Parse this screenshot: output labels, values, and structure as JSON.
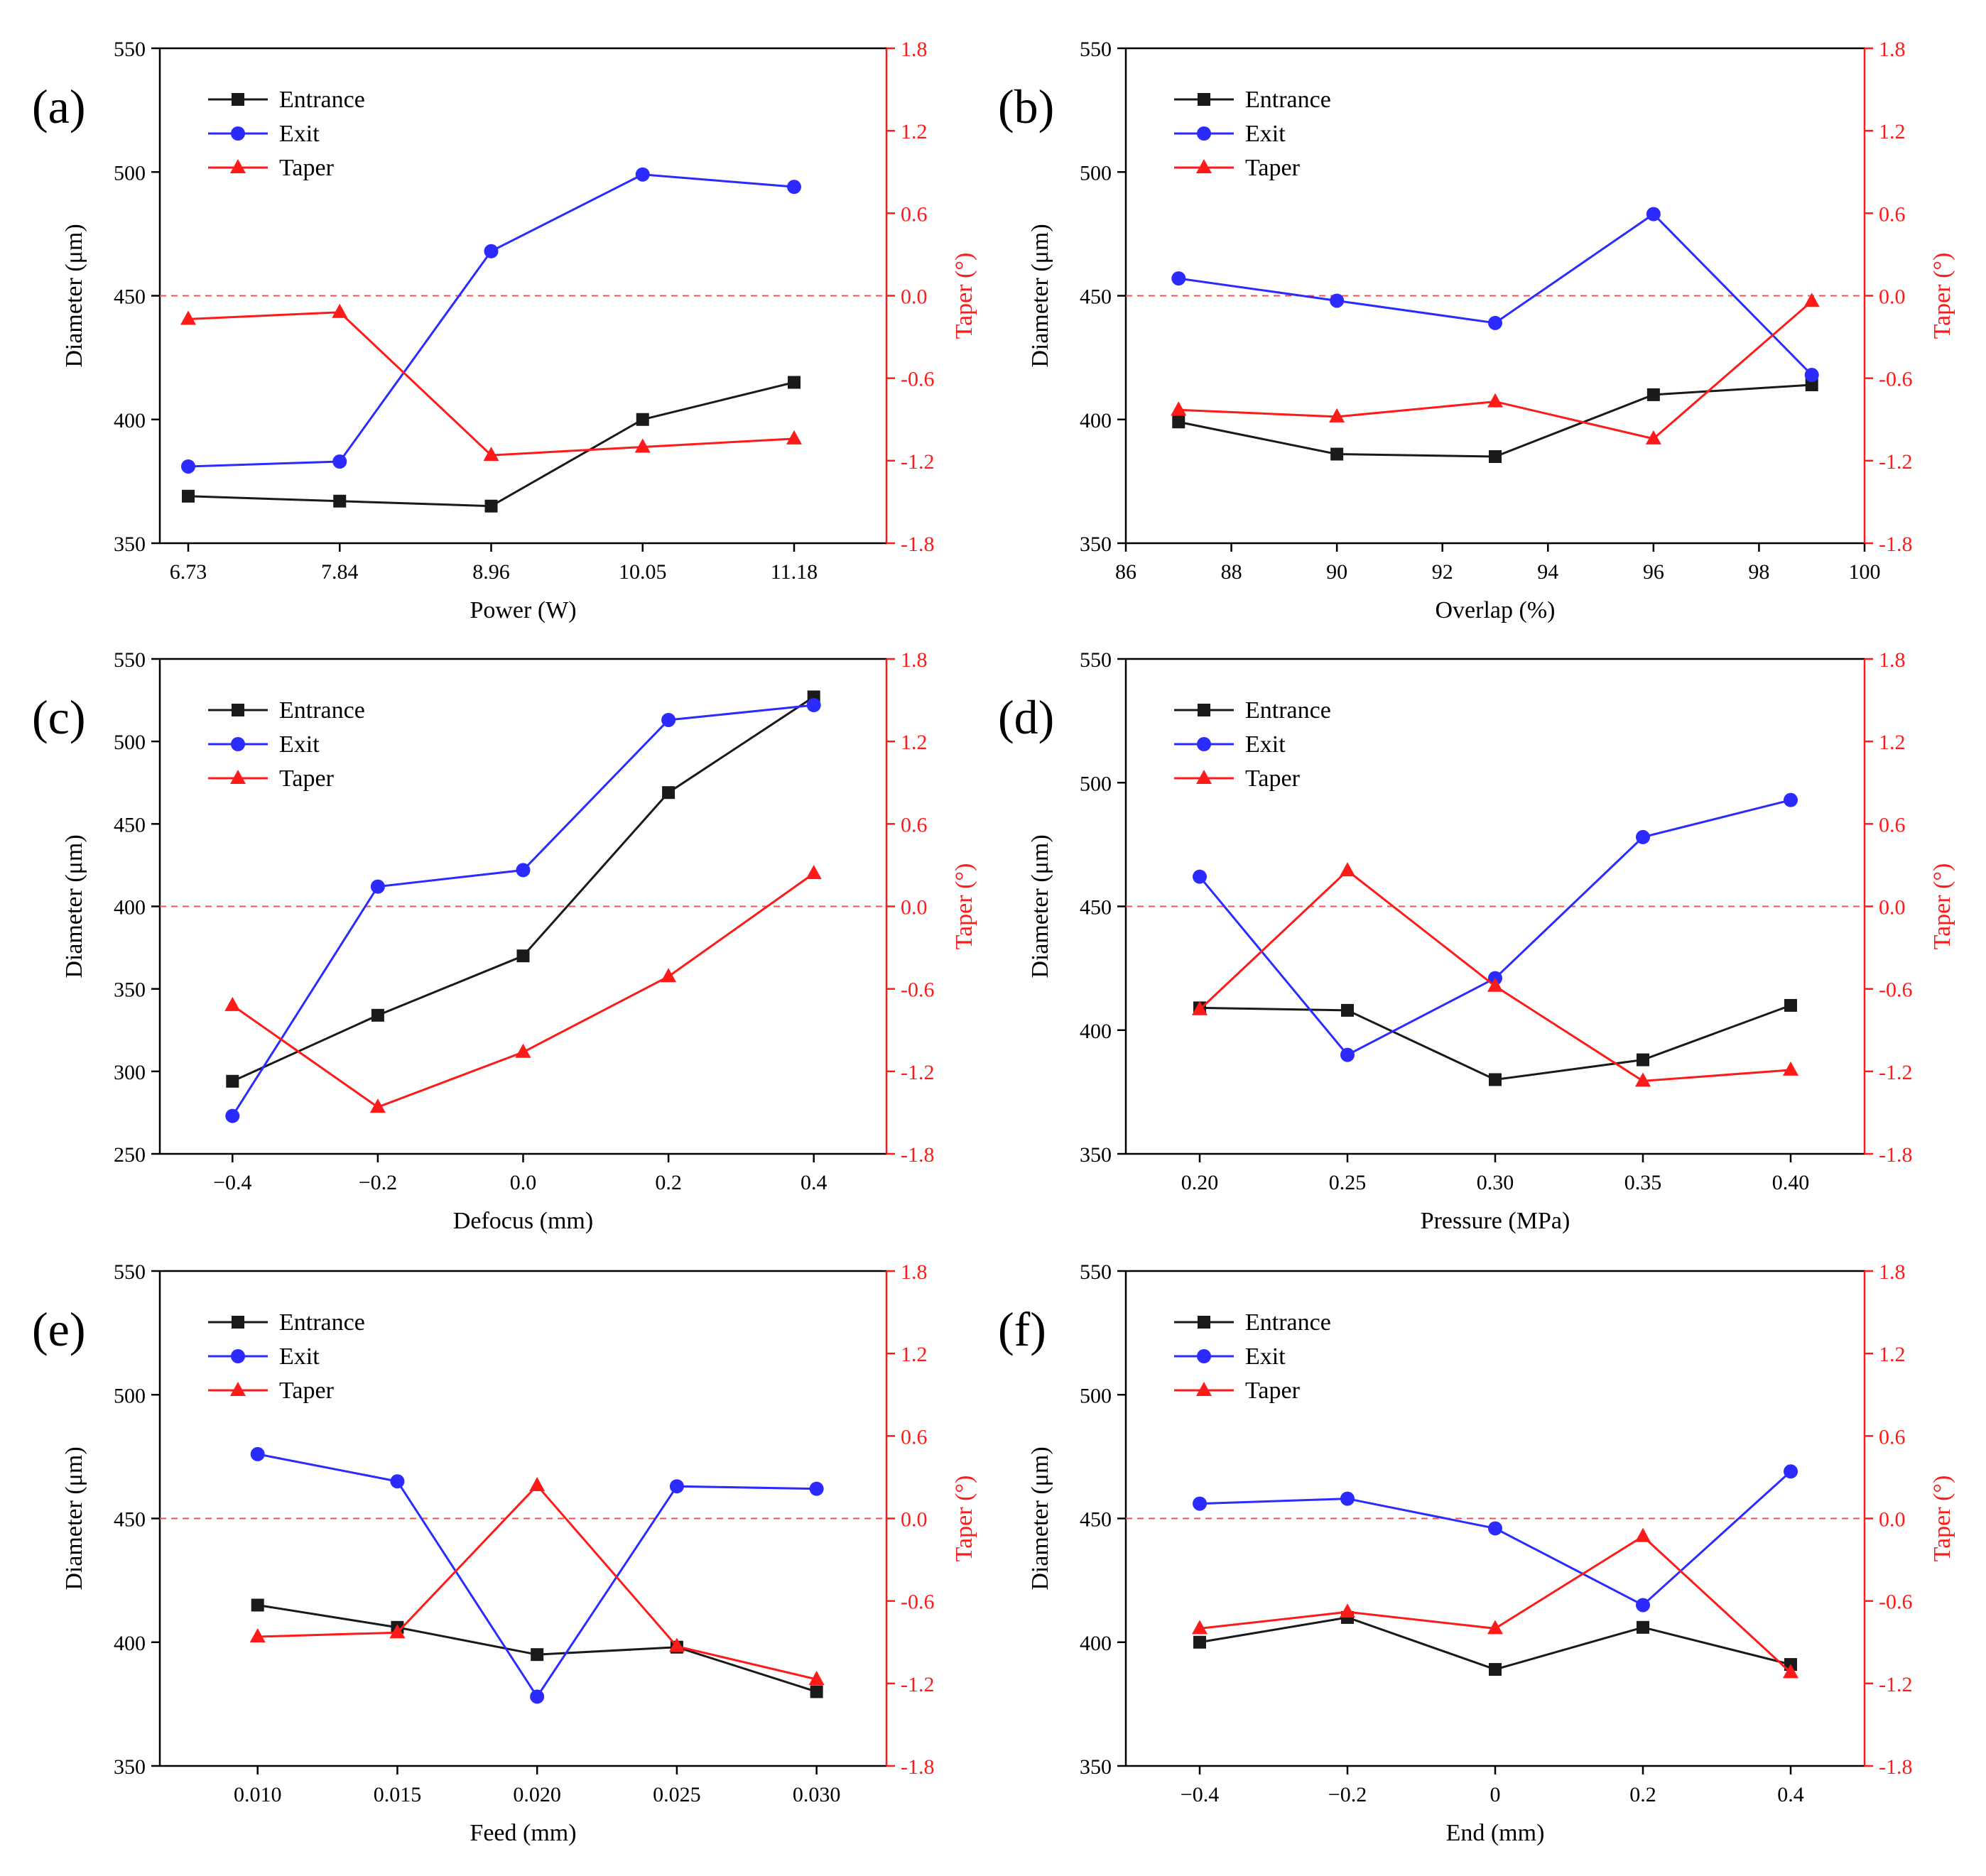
{
  "colors": {
    "entrance": "#1a1a1a",
    "exit": "#2b2bff",
    "taper": "#ff1a1a",
    "axis": "#000000",
    "taper_axis": "#ff1a1a",
    "reference_line": "#ff4d4d"
  },
  "icons": {
    "entrance": "square-marker-icon",
    "exit": "circle-marker-icon",
    "taper": "triangle-marker-icon"
  },
  "chart_data": [
    {
      "panel_label": "(a)",
      "type": "line",
      "xscale": "categorical",
      "x": [
        6.73,
        7.84,
        8.96,
        10.05,
        11.18
      ],
      "xticklabels": [
        "6.73",
        "7.84",
        "8.96",
        "10.05",
        "11.18"
      ],
      "xlim": [
        6.73,
        11.18
      ],
      "xlabel": "Power (W)",
      "ylabel": "Diameter (μm)",
      "ylim": [
        350,
        550
      ],
      "yticks": [
        "350",
        "400",
        "450",
        "500",
        "550"
      ],
      "y2label": "Taper (°)",
      "y2lim": [
        -1.8,
        1.8
      ],
      "y2ticks": [
        "-1.8",
        "-1.2",
        "-0.6",
        "0.0",
        "0.6",
        "1.2",
        "1.8"
      ],
      "reference_line": {
        "axis": "y2",
        "value": 0.0
      },
      "legend": [
        "Entrance",
        "Exit",
        "Taper"
      ],
      "series": [
        {
          "name": "Entrance",
          "axis": "y",
          "values": [
            369,
            367,
            365,
            400,
            415
          ]
        },
        {
          "name": "Exit",
          "axis": "y",
          "values": [
            381,
            383,
            468,
            499,
            494
          ]
        },
        {
          "name": "Taper",
          "axis": "y2",
          "values": [
            -0.17,
            -0.12,
            -1.16,
            -1.1,
            -1.04
          ]
        }
      ]
    },
    {
      "panel_label": "(b)",
      "type": "line",
      "xscale": "linear",
      "x": [
        87,
        90,
        93,
        96,
        99
      ],
      "xticklabels": [
        "86",
        "88",
        "90",
        "92",
        "94",
        "96",
        "98",
        "100"
      ],
      "xtickvalues": [
        86,
        88,
        90,
        92,
        94,
        96,
        98,
        100
      ],
      "xlim": [
        86,
        100
      ],
      "xlabel": "Overlap (%)",
      "ylabel": "Diameter (μm)",
      "ylim": [
        350,
        550
      ],
      "yticks": [
        "350",
        "400",
        "450",
        "500",
        "550"
      ],
      "y2label": "Taper (°)",
      "y2lim": [
        -1.8,
        1.8
      ],
      "y2ticks": [
        "-1.8",
        "-1.2",
        "-0.6",
        "0.0",
        "0.6",
        "1.2",
        "1.8"
      ],
      "reference_line": {
        "axis": "y2",
        "value": 0.0
      },
      "legend": [
        "Entrance",
        "Exit",
        "Taper"
      ],
      "series": [
        {
          "name": "Entrance",
          "axis": "y",
          "values": [
            399,
            386,
            385,
            410,
            414
          ]
        },
        {
          "name": "Exit",
          "axis": "y",
          "values": [
            457,
            448,
            439,
            483,
            418
          ]
        },
        {
          "name": "Taper",
          "axis": "y2",
          "values": [
            -0.83,
            -0.88,
            -0.77,
            -1.04,
            -0.04
          ]
        }
      ]
    },
    {
      "panel_label": "(c)",
      "type": "line",
      "xscale": "linear",
      "x": [
        -0.4,
        -0.2,
        0.0,
        0.2,
        0.4
      ],
      "xticklabels": [
        "−0.4",
        "−0.2",
        "0.0",
        "0.2",
        "0.4"
      ],
      "xtickvalues": [
        -0.4,
        -0.2,
        0.0,
        0.2,
        0.4
      ],
      "xlim": [
        -0.5,
        0.5
      ],
      "xlabel": "Defocus (mm)",
      "ylabel": "Diameter (μm)",
      "ylim": [
        250,
        550
      ],
      "yticks": [
        "250",
        "300",
        "350",
        "400",
        "450",
        "500",
        "550"
      ],
      "y2label": "Taper (°)",
      "y2lim": [
        -1.8,
        1.8
      ],
      "y2ticks": [
        "-1.8",
        "-1.2",
        "-0.6",
        "0.0",
        "0.6",
        "1.2",
        "1.8"
      ],
      "reference_line": {
        "axis": "y2",
        "value": 0.0
      },
      "legend": [
        "Entrance",
        "Exit",
        "Taper"
      ],
      "series": [
        {
          "name": "Entrance",
          "axis": "y",
          "values": [
            294,
            334,
            370,
            469,
            527
          ]
        },
        {
          "name": "Exit",
          "axis": "y",
          "values": [
            273,
            412,
            422,
            513,
            522
          ]
        },
        {
          "name": "Taper",
          "axis": "y2",
          "values": [
            -0.72,
            -1.46,
            -1.06,
            -0.51,
            0.24
          ]
        }
      ]
    },
    {
      "panel_label": "(d)",
      "type": "line",
      "xscale": "linear",
      "x": [
        0.2,
        0.25,
        0.3,
        0.35,
        0.4
      ],
      "xticklabels": [
        "0.20",
        "0.25",
        "0.30",
        "0.35",
        "0.40"
      ],
      "xtickvalues": [
        0.2,
        0.25,
        0.3,
        0.35,
        0.4
      ],
      "xlim": [
        0.175,
        0.425
      ],
      "xlabel": "Pressure (MPa)",
      "ylabel": "Diameter (μm)",
      "ylim": [
        350,
        550
      ],
      "yticks": [
        "350",
        "400",
        "450",
        "500",
        "550"
      ],
      "y2label": "Taper (°)",
      "y2lim": [
        -1.8,
        1.8
      ],
      "y2ticks": [
        "-1.8",
        "-1.2",
        "-0.6",
        "0.0",
        "0.6",
        "1.2",
        "1.8"
      ],
      "reference_line": {
        "axis": "y2",
        "value": 0.0
      },
      "legend": [
        "Entrance",
        "Exit",
        "Taper"
      ],
      "series": [
        {
          "name": "Entrance",
          "axis": "y",
          "values": [
            409,
            408,
            380,
            388,
            410
          ]
        },
        {
          "name": "Exit",
          "axis": "y",
          "values": [
            462,
            390,
            421,
            478,
            493
          ]
        },
        {
          "name": "Taper",
          "axis": "y2",
          "values": [
            -0.75,
            0.26,
            -0.58,
            -1.27,
            -1.19
          ]
        }
      ]
    },
    {
      "panel_label": "(e)",
      "type": "line",
      "xscale": "linear",
      "x": [
        0.01,
        0.015,
        0.02,
        0.025,
        0.03
      ],
      "xticklabels": [
        "0.010",
        "0.015",
        "0.020",
        "0.025",
        "0.030"
      ],
      "xtickvalues": [
        0.01,
        0.015,
        0.02,
        0.025,
        0.03
      ],
      "xlim": [
        0.0065,
        0.0325
      ],
      "xlabel": "Feed (mm)",
      "ylabel": "Diameter (μm)",
      "ylim": [
        350,
        550
      ],
      "yticks": [
        "350",
        "400",
        "450",
        "500",
        "550"
      ],
      "y2label": "Taper (°)",
      "y2lim": [
        -1.8,
        1.8
      ],
      "y2ticks": [
        "-1.8",
        "-1.2",
        "-0.6",
        "0.0",
        "0.6",
        "1.2",
        "1.8"
      ],
      "reference_line": {
        "axis": "y2",
        "value": 0.0
      },
      "legend": [
        "Entrance",
        "Exit",
        "Taper"
      ],
      "series": [
        {
          "name": "Entrance",
          "axis": "y",
          "values": [
            415,
            406,
            395,
            398,
            380
          ]
        },
        {
          "name": "Exit",
          "axis": "y",
          "values": [
            476,
            465,
            378,
            463,
            462
          ]
        },
        {
          "name": "Taper",
          "axis": "y2",
          "values": [
            -0.86,
            -0.83,
            0.24,
            -0.93,
            -1.17
          ]
        }
      ]
    },
    {
      "panel_label": "(f)",
      "type": "line",
      "xscale": "linear",
      "x": [
        -0.4,
        -0.2,
        0.0,
        0.2,
        0.4
      ],
      "xticklabels": [
        "−0.4",
        "−0.2",
        "0",
        "0.2",
        "0.4"
      ],
      "xtickvalues": [
        -0.4,
        -0.2,
        0.0,
        0.2,
        0.4
      ],
      "xlim": [
        -0.5,
        0.5
      ],
      "xlabel": "End (mm)",
      "ylabel": "Diameter (μm)",
      "ylim": [
        350,
        550
      ],
      "yticks": [
        "350",
        "400",
        "450",
        "500",
        "550"
      ],
      "y2label": "Taper (°)",
      "y2lim": [
        -1.8,
        1.8
      ],
      "y2ticks": [
        "-1.8",
        "-1.2",
        "-0.6",
        "0.0",
        "0.6",
        "1.2",
        "1.8"
      ],
      "reference_line": {
        "axis": "y2",
        "value": 0.0
      },
      "legend": [
        "Entrance",
        "Exit",
        "Taper"
      ],
      "series": [
        {
          "name": "Entrance",
          "axis": "y",
          "values": [
            400,
            410,
            389,
            406,
            391
          ]
        },
        {
          "name": "Exit",
          "axis": "y",
          "values": [
            456,
            458,
            446,
            415,
            469
          ]
        },
        {
          "name": "Taper",
          "axis": "y2",
          "values": [
            -0.8,
            -0.68,
            -0.8,
            -0.13,
            -1.12
          ]
        }
      ]
    }
  ]
}
